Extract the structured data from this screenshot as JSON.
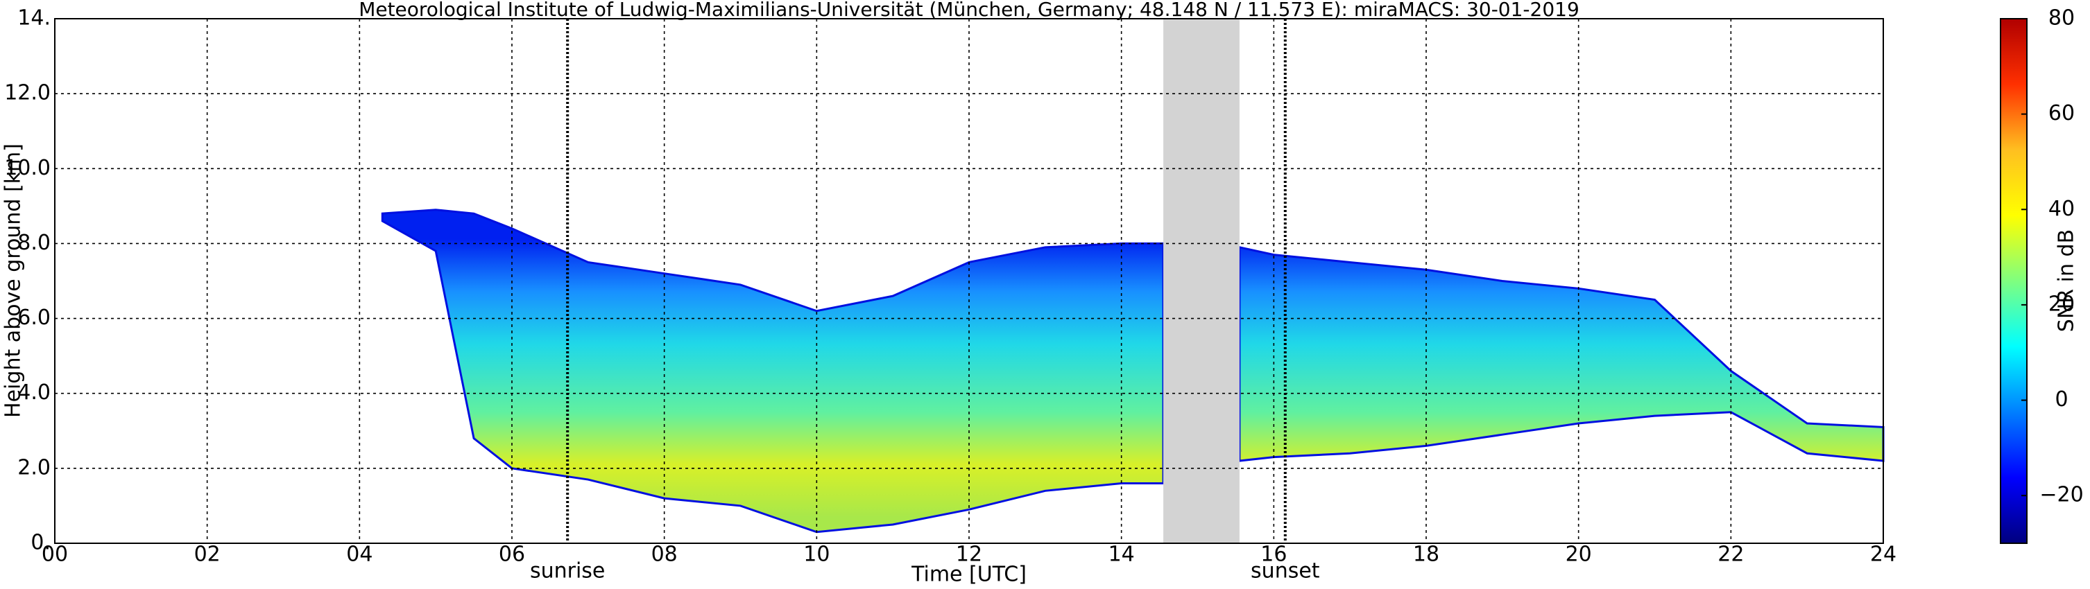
{
  "chart_data": {
    "type": "radar-section",
    "title": "Meteorological Institute of Ludwig-Maximilians-Universität (München, Germany; 48.148 N / 11.573 E):    miraMACS: 30-01-2019",
    "x_label": "Time [UTC]",
    "y_label": "Height above ground [km]",
    "colorbar_label": "SNR in dB",
    "xlim": [
      0,
      24
    ],
    "xticks": [
      {
        "value": 0,
        "label": "00"
      },
      {
        "value": 2,
        "label": "02"
      },
      {
        "value": 4,
        "label": "04"
      },
      {
        "value": 6,
        "label": "06"
      },
      {
        "value": 8,
        "label": "08"
      },
      {
        "value": 10,
        "label": "10"
      },
      {
        "value": 12,
        "label": "12"
      },
      {
        "value": 14,
        "label": "14"
      },
      {
        "value": 16,
        "label": "16"
      },
      {
        "value": 18,
        "label": "18"
      },
      {
        "value": 20,
        "label": "20"
      },
      {
        "value": 22,
        "label": "22"
      },
      {
        "value": 24,
        "label": "24"
      }
    ],
    "ylim": [
      0,
      14
    ],
    "yticks": [
      {
        "value": 0,
        "label": "0."
      },
      {
        "value": 2,
        "label": "2.0"
      },
      {
        "value": 4,
        "label": "4.0"
      },
      {
        "value": 6,
        "label": "6.0"
      },
      {
        "value": 8,
        "label": "8.0"
      },
      {
        "value": 10,
        "label": "10.0"
      },
      {
        "value": 12,
        "label": "12.0"
      },
      {
        "value": 14,
        "label": "14."
      }
    ],
    "clim": [
      -30,
      80
    ],
    "cticks": [
      {
        "value": -20,
        "label": "−20"
      },
      0,
      20,
      40,
      60,
      80
    ],
    "grid": true,
    "colormap": [
      "#00007f",
      "#0000ff",
      "#007fff",
      "#00ffff",
      "#7fff7f",
      "#ffff00",
      "#ffbf20",
      "#ff3000",
      "#b00000"
    ],
    "series": [
      {
        "x": [
          4.3,
          5,
          5.5,
          6,
          7,
          8,
          9,
          10,
          11,
          12,
          13,
          14,
          14.55,
          15,
          15.55,
          16,
          17,
          18,
          19,
          20,
          21,
          22,
          23,
          24
        ],
        "top": [
          8.8,
          8.9,
          8.8,
          8.4,
          7.5,
          7.2,
          6.9,
          6.2,
          6.6,
          7.5,
          7.9,
          8.0,
          8.0,
          null,
          7.9,
          7.7,
          7.5,
          7.3,
          7.0,
          6.8,
          6.5,
          4.6,
          3.2,
          3.1
        ],
        "base": [
          8.6,
          7.8,
          2.8,
          2.0,
          1.7,
          1.2,
          1.0,
          0.3,
          0.5,
          0.9,
          1.4,
          1.6,
          1.6,
          null,
          2.2,
          2.3,
          2.4,
          2.6,
          2.9,
          3.2,
          3.4,
          3.5,
          2.4,
          2.2
        ]
      }
    ],
    "gap": [
      14.55,
      15.55
    ],
    "gap_color": "#d3d3d3",
    "events": [
      {
        "name": "sunrise",
        "x": 6.73
      },
      {
        "name": "sunset",
        "x": 16.15
      }
    ]
  }
}
